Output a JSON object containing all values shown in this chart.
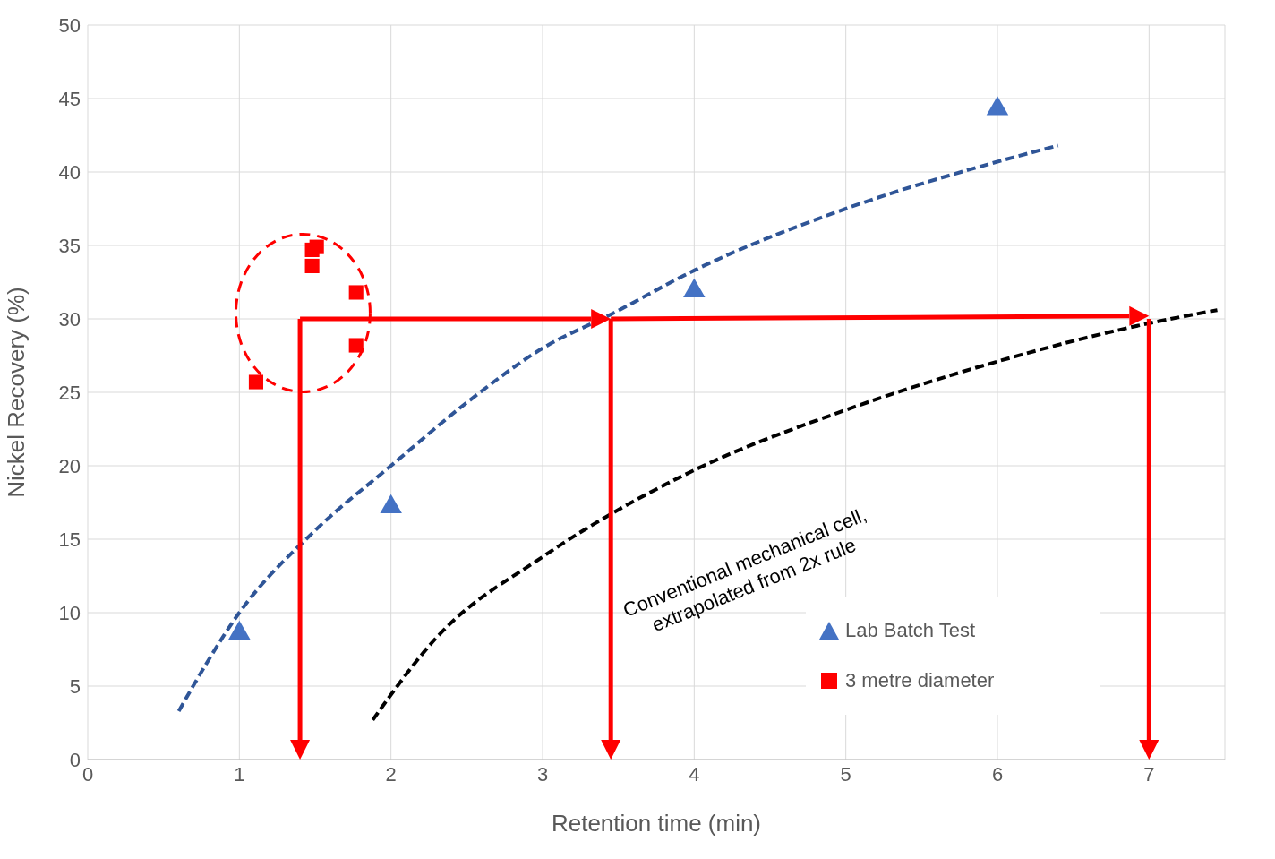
{
  "chart_data": {
    "type": "scatter",
    "xlabel": "Retention time (min)",
    "ylabel": "Nickel Recovery (%)",
    "xlim": [
      0,
      7.5
    ],
    "xticks": [
      0,
      1,
      2,
      3,
      4,
      5,
      6,
      7
    ],
    "ylim": [
      0,
      50
    ],
    "yticks": [
      0,
      5,
      10,
      15,
      20,
      25,
      30,
      35,
      40,
      45,
      50
    ],
    "grid": true,
    "legend": "bottom right",
    "annotations": [
      "Conventional mechanical cell, extrapolated from 2x rule"
    ],
    "series": [
      {
        "name": "Lab Batch Test",
        "marker": "triangle",
        "color": "#4472c4",
        "x": [
          1,
          2,
          4,
          6
        ],
        "values": [
          8.6,
          17.2,
          31.9,
          44.3
        ]
      },
      {
        "name": "3 metre diameter",
        "marker": "square",
        "color": "#ff0000",
        "x": [
          1.11,
          1.48,
          1.48,
          1.51,
          1.77,
          1.77
        ],
        "values": [
          25.7,
          34.7,
          33.6,
          34.9,
          31.8,
          28.2
        ]
      },
      {
        "type": "line",
        "marker": "none",
        "line_style": "dashed",
        "color": "#2f5597",
        "x": [
          0.6,
          1,
          1.5,
          2,
          2.5,
          3,
          3.45,
          4,
          5,
          6,
          6.4
        ],
        "values": [
          3.3,
          10,
          15.6,
          20,
          24.3,
          28,
          30.3,
          33.3,
          37.5,
          40.7,
          41.8
        ]
      },
      {
        "type": "line",
        "marker": "none",
        "line_style": "dashed",
        "color": "#000000",
        "x": [
          1.88,
          2.3,
          3,
          4,
          5,
          6,
          7,
          7.45
        ],
        "values": [
          2.7,
          8.3,
          13.8,
          19.7,
          23.8,
          27.1,
          29.7,
          30.6
        ]
      }
    ]
  }
}
